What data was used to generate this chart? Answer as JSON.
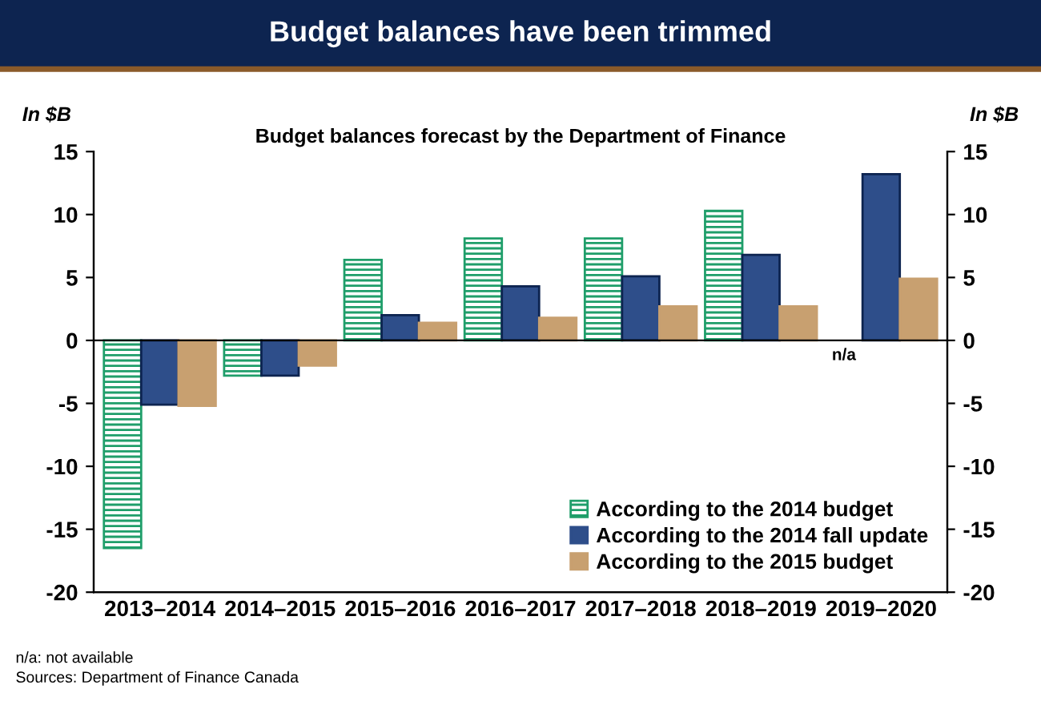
{
  "chart_data": {
    "type": "bar",
    "title": "Budget balances have been trimmed",
    "subtitle": "Budget balances forecast by the Department of Finance",
    "ylabel": "In $B",
    "y2label": "In $B",
    "categories": [
      "2013–2014",
      "2014–2015",
      "2015–2016",
      "2016–2017",
      "2017–2018",
      "2018–2019",
      "2019–2020"
    ],
    "series": [
      {
        "name": "According to the 2014 budget",
        "color": "#1f9e6a",
        "values": [
          -16.5,
          -2.8,
          6.4,
          8.1,
          8.1,
          10.3,
          null
        ]
      },
      {
        "name": "According to the 2014 fall update",
        "color": "#2e4e8a",
        "values": [
          -5.1,
          -2.8,
          2.0,
          4.3,
          5.1,
          6.8,
          13.2
        ]
      },
      {
        "name": "According to the 2015 budget",
        "color": "#c8a070",
        "values": [
          -5.2,
          -2.0,
          1.4,
          1.8,
          2.7,
          2.7,
          4.9
        ]
      }
    ],
    "ylim": [
      -20,
      15
    ],
    "yticks": [
      -20,
      -15,
      -10,
      -5,
      0,
      5,
      10,
      15
    ],
    "y2lim": [
      -20,
      15
    ],
    "y2ticks": [
      -20,
      -15,
      -10,
      -5,
      0,
      5,
      10,
      15
    ],
    "grid": false,
    "legend": "bottom right",
    "ref_lines": [
      {
        "axis": "y",
        "value": 0,
        "color": "#000000"
      }
    ],
    "annotations": [
      "n/a",
      "n/a: not available",
      "Sources: Department of Finance Canada"
    ]
  }
}
